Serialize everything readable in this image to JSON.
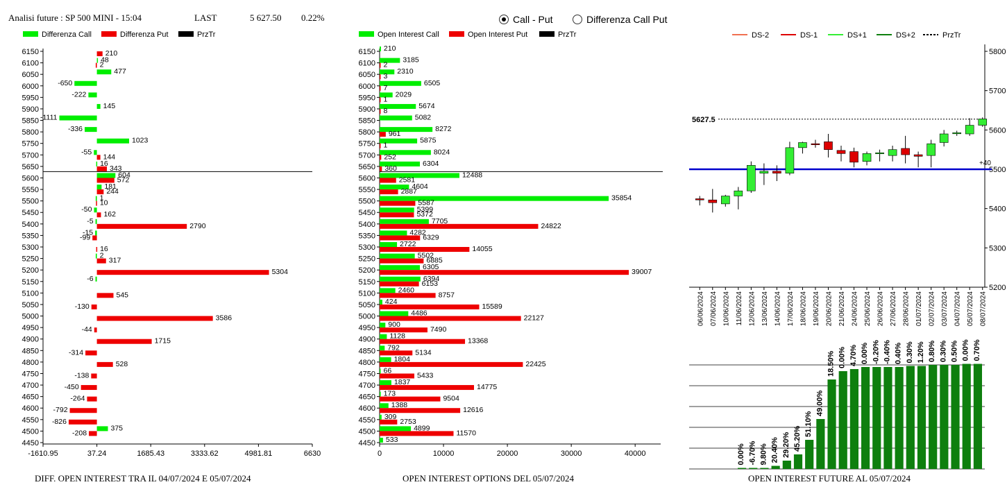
{
  "header": {
    "title": "Analisi future : SP 500 MINI - 15:04",
    "last_label": "LAST",
    "last_value": "5 627.50",
    "change": "0.22%",
    "radio_call_put": "Call - Put",
    "radio_diff": "Differenza Call Put",
    "selected": "call-put"
  },
  "captions": {
    "left": "DIFF. OPEN INTEREST TRA IL 04/07/2024 E 05/07/2024",
    "middle": "OPEN INTEREST OPTIONS DEL 05/07/2024",
    "right": "OPEN INTEREST FUTURE AL 05/07/2024"
  },
  "colors": {
    "green": "#00ee00",
    "red": "#ee0000",
    "dark_green": "#0e7f0e",
    "blue": "#0000cc",
    "black": "#000000"
  },
  "chart_data": [
    {
      "type": "bar",
      "orientation": "horizontal",
      "legend": [
        "Differenza Call",
        "Differenza Put",
        "PrzTr"
      ],
      "categories": [
        6150,
        6100,
        6050,
        6000,
        5950,
        5900,
        5850,
        5800,
        5750,
        5700,
        5650,
        5600,
        5550,
        5500,
        5450,
        5400,
        5350,
        5300,
        5250,
        5200,
        5150,
        5100,
        5050,
        5000,
        4950,
        4900,
        4850,
        4800,
        4750,
        4700,
        4650,
        4600,
        4550,
        4500,
        4450
      ],
      "series": [
        {
          "name": "Differenza Call",
          "values": [
            null,
            48,
            477,
            -650,
            -222,
            145,
            -1111,
            -336,
            1023,
            -55,
            16,
            604,
            181,
            1,
            -50,
            -5,
            -15,
            null,
            2,
            null,
            -6,
            null,
            null,
            null,
            null,
            null,
            null,
            null,
            null,
            null,
            null,
            null,
            null,
            375,
            null
          ]
        },
        {
          "name": "Differenza Put",
          "values": [
            210,
            2,
            null,
            null,
            null,
            null,
            null,
            null,
            null,
            144,
            343,
            572,
            244,
            10,
            162,
            2790,
            -99,
            16,
            317,
            5304,
            null,
            545,
            -130,
            3586,
            -44,
            1715,
            -314,
            528,
            -138,
            -450,
            -264,
            -792,
            -826,
            -208,
            null
          ]
        }
      ],
      "xticks": [
        "-1610.95",
        "37.24",
        "1685.43",
        "3333.62",
        "4981.81",
        "6630"
      ],
      "xlim": [
        -1610.95,
        6630
      ],
      "price_line": 5627.5
    },
    {
      "type": "bar",
      "orientation": "horizontal",
      "legend": [
        "Open Interest Call",
        "Open Interest Put",
        "PrzTr"
      ],
      "categories": [
        6150,
        6100,
        6050,
        6000,
        5950,
        5900,
        5850,
        5800,
        5750,
        5700,
        5650,
        5600,
        5550,
        5500,
        5450,
        5400,
        5350,
        5300,
        5250,
        5200,
        5150,
        5100,
        5050,
        5000,
        4950,
        4900,
        4850,
        4800,
        4750,
        4700,
        4650,
        4600,
        4550,
        4500,
        4450
      ],
      "series": [
        {
          "name": "Open Interest Call",
          "values": [
            210,
            3185,
            2310,
            6505,
            2029,
            5674,
            5082,
            8272,
            5875,
            8024,
            6304,
            12488,
            4604,
            35854,
            5399,
            7705,
            4282,
            2722,
            5502,
            6305,
            6394,
            2460,
            424,
            4486,
            900,
            1128,
            792,
            1804,
            66,
            1837,
            173,
            1388,
            309,
            4899,
            533
          ]
        },
        {
          "name": "Open Interest Put",
          "values": [
            null,
            2,
            3,
            7,
            1,
            8,
            null,
            961,
            1,
            252,
            360,
            2581,
            2887,
            5587,
            5372,
            24822,
            6329,
            14055,
            6885,
            39007,
            6153,
            8757,
            15589,
            22127,
            7490,
            13368,
            5134,
            22425,
            5433,
            14775,
            9504,
            12616,
            2753,
            11570,
            null
          ]
        }
      ],
      "xticks": [
        "0",
        "10000",
        "20000",
        "30000",
        "40000"
      ],
      "xlim": [
        0,
        44000
      ],
      "price_line": 5627.5
    },
    {
      "type": "candlestick",
      "legend": [
        "DS-2",
        "DS-1",
        "DS+1",
        "DS+2",
        "PrzTr"
      ],
      "dates": [
        "06/06/2024",
        "07/06/2024",
        "10/06/2024",
        "11/06/2024",
        "12/06/2024",
        "13/06/2024",
        "14/06/2024",
        "17/06/2024",
        "18/06/2024",
        "19/06/2024",
        "20/06/2024",
        "21/06/2024",
        "24/06/2024",
        "25/06/2024",
        "26/06/2024",
        "27/06/2024",
        "28/06/2024",
        "01/07/2024",
        "02/07/2024",
        "03/07/2024",
        "04/07/2024",
        "05/07/2024",
        "08/07/2024"
      ],
      "ohlc": [
        [
          5425,
          5432,
          5408,
          5422
        ],
        [
          5422,
          5450,
          5390,
          5415
        ],
        [
          5412,
          5435,
          5405,
          5432
        ],
        [
          5432,
          5455,
          5398,
          5445
        ],
        [
          5445,
          5520,
          5440,
          5510
        ],
        [
          5490,
          5515,
          5460,
          5495
        ],
        [
          5495,
          5510,
          5470,
          5490
        ],
        [
          5490,
          5570,
          5485,
          5555
        ],
        [
          5555,
          5570,
          5540,
          5568
        ],
        [
          5565,
          5575,
          5555,
          5563
        ],
        [
          5570,
          5590,
          5530,
          5550
        ],
        [
          5548,
          5560,
          5520,
          5540
        ],
        [
          5545,
          5555,
          5505,
          5518
        ],
        [
          5520,
          5545,
          5510,
          5540
        ],
        [
          5540,
          5550,
          5520,
          5542
        ],
        [
          5535,
          5560,
          5520,
          5550
        ],
        [
          5553,
          5585,
          5515,
          5537
        ],
        [
          5537,
          5545,
          5505,
          5533
        ],
        [
          5535,
          5575,
          5505,
          5565
        ],
        [
          5568,
          5600,
          5558,
          5590
        ],
        [
          5592,
          5598,
          5585,
          5593
        ],
        [
          5590,
          5630,
          5585,
          5612
        ],
        [
          5612,
          5632,
          5608,
          5628
        ]
      ],
      "yticks": [
        5800,
        5700,
        5600,
        5500,
        5400,
        5300,
        5200
      ],
      "ylim": [
        5200,
        5800
      ],
      "price_label": "5627.5",
      "price_line": 5627.5,
      "blue_line": 5500,
      "blue_label": "+40"
    },
    {
      "type": "bar",
      "categories": [
        "06/06/2024",
        "07/06/2024",
        "10/06/2024",
        "11/06/2024",
        "12/06/2024",
        "13/06/2024",
        "14/06/2024",
        "17/06/2024",
        "18/06/2024",
        "19/06/2024",
        "20/06/2024",
        "21/06/2024",
        "24/06/2024",
        "25/06/2024",
        "26/06/2024",
        "27/06/2024",
        "28/06/2024",
        "01/07/2024",
        "02/07/2024",
        "03/07/2024",
        "04/07/2024",
        "05/07/2024",
        "08/07/2024"
      ],
      "labels": [
        "0.00%",
        "-6.70%",
        "9.80%",
        "20.40%",
        "29.20%",
        "45.20%",
        "51.10%",
        "49.00%",
        "18.50%",
        "0.00%",
        "4.70%",
        "0.00%",
        "-0.20%",
        "-0.40%",
        "0.40%",
        "0.30%",
        "1.20%",
        "0.80%",
        "0.30%",
        "0.50%",
        "0.00%",
        "0.70%"
      ],
      "values": [
        1,
        1,
        1,
        3,
        8,
        14,
        28,
        48,
        86,
        94,
        96,
        98,
        98,
        98,
        98,
        99,
        99,
        100,
        100,
        100,
        101,
        101
      ]
    }
  ]
}
